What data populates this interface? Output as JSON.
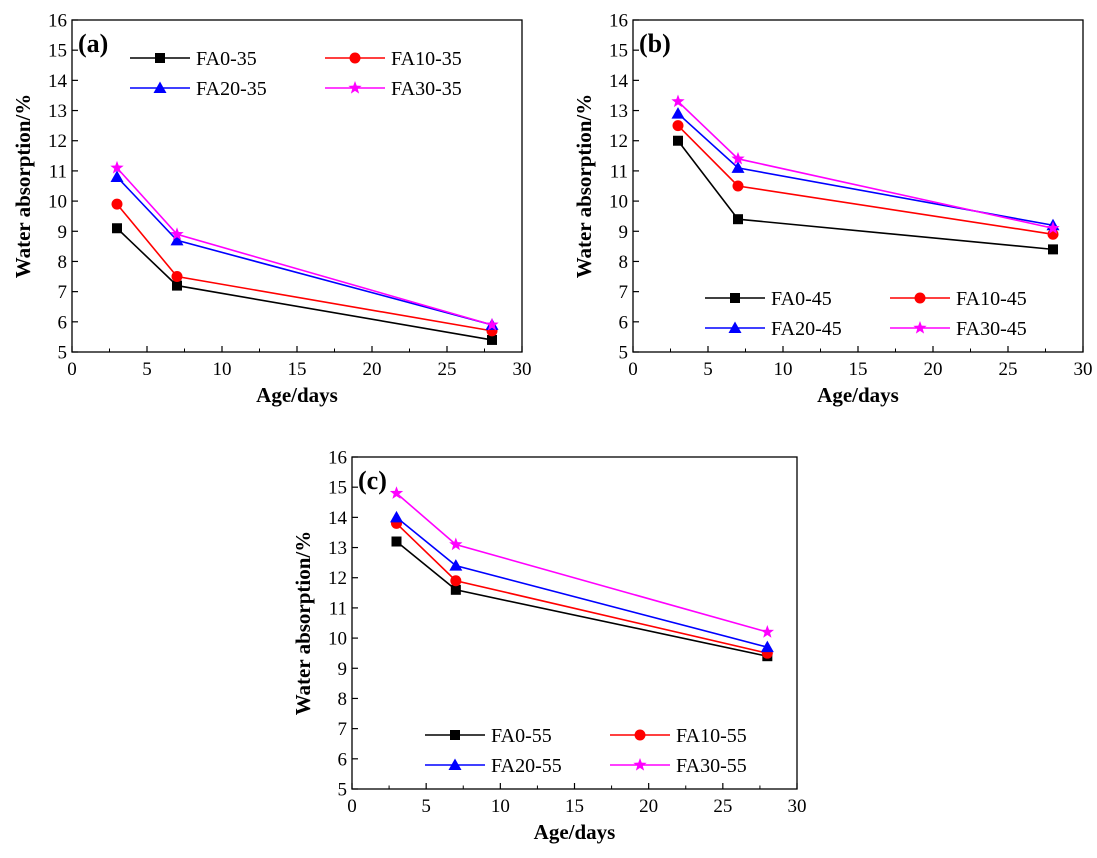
{
  "chart_data": [
    {
      "type": "line",
      "panel_label": "(a)",
      "xlabel": "Age/days",
      "ylabel": "Water absorption/%",
      "xlim": [
        0,
        30
      ],
      "ylim": [
        5,
        16
      ],
      "xticks": [
        0,
        5,
        10,
        15,
        20,
        25,
        30
      ],
      "yticks": [
        5,
        6,
        7,
        8,
        9,
        10,
        11,
        12,
        13,
        14,
        15,
        16
      ],
      "grid": false,
      "legend_position": "top",
      "x": [
        3,
        7,
        28
      ],
      "series": [
        {
          "name": "FA0-35",
          "color": "#000000",
          "marker": "square",
          "values": [
            9.1,
            7.2,
            5.4
          ]
        },
        {
          "name": "FA10-35",
          "color": "#ff0000",
          "marker": "circle",
          "values": [
            9.9,
            7.5,
            5.7
          ]
        },
        {
          "name": "FA20-35",
          "color": "#0000ff",
          "marker": "triangle",
          "values": [
            10.8,
            8.7,
            5.9
          ]
        },
        {
          "name": "FA30-35",
          "color": "#ff00ff",
          "marker": "star",
          "values": [
            11.1,
            8.9,
            5.9
          ]
        }
      ]
    },
    {
      "type": "line",
      "panel_label": "(b)",
      "xlabel": "Age/days",
      "ylabel": "Water absorption/%",
      "xlim": [
        0,
        30
      ],
      "ylim": [
        5,
        16
      ],
      "xticks": [
        0,
        5,
        10,
        15,
        20,
        25,
        30
      ],
      "yticks": [
        5,
        6,
        7,
        8,
        9,
        10,
        11,
        12,
        13,
        14,
        15,
        16
      ],
      "grid": false,
      "legend_position": "bottom-right",
      "x": [
        3,
        7,
        28
      ],
      "series": [
        {
          "name": "FA0-45",
          "color": "#000000",
          "marker": "square",
          "values": [
            12.0,
            9.4,
            8.4
          ]
        },
        {
          "name": "FA10-45",
          "color": "#ff0000",
          "marker": "circle",
          "values": [
            12.5,
            10.5,
            8.9
          ]
        },
        {
          "name": "FA20-45",
          "color": "#0000ff",
          "marker": "triangle",
          "values": [
            12.9,
            11.1,
            9.2
          ]
        },
        {
          "name": "FA30-45",
          "color": "#ff00ff",
          "marker": "star",
          "values": [
            13.3,
            11.4,
            9.1
          ]
        }
      ]
    },
    {
      "type": "line",
      "panel_label": "(c)",
      "xlabel": "Age/days",
      "ylabel": "Water absorption/%",
      "xlim": [
        0,
        30
      ],
      "ylim": [
        5,
        16
      ],
      "xticks": [
        0,
        5,
        10,
        15,
        20,
        25,
        30
      ],
      "yticks": [
        5,
        6,
        7,
        8,
        9,
        10,
        11,
        12,
        13,
        14,
        15,
        16
      ],
      "grid": false,
      "legend_position": "bottom-right",
      "x": [
        3,
        7,
        28
      ],
      "series": [
        {
          "name": "FA0-55",
          "color": "#000000",
          "marker": "square",
          "values": [
            13.2,
            11.6,
            9.4
          ]
        },
        {
          "name": "FA10-55",
          "color": "#ff0000",
          "marker": "circle",
          "values": [
            13.8,
            11.9,
            9.5
          ]
        },
        {
          "name": "FA20-55",
          "color": "#0000ff",
          "marker": "triangle",
          "values": [
            14.0,
            12.4,
            9.7
          ]
        },
        {
          "name": "FA30-55",
          "color": "#ff00ff",
          "marker": "star",
          "values": [
            14.8,
            13.1,
            10.2
          ]
        }
      ]
    }
  ]
}
